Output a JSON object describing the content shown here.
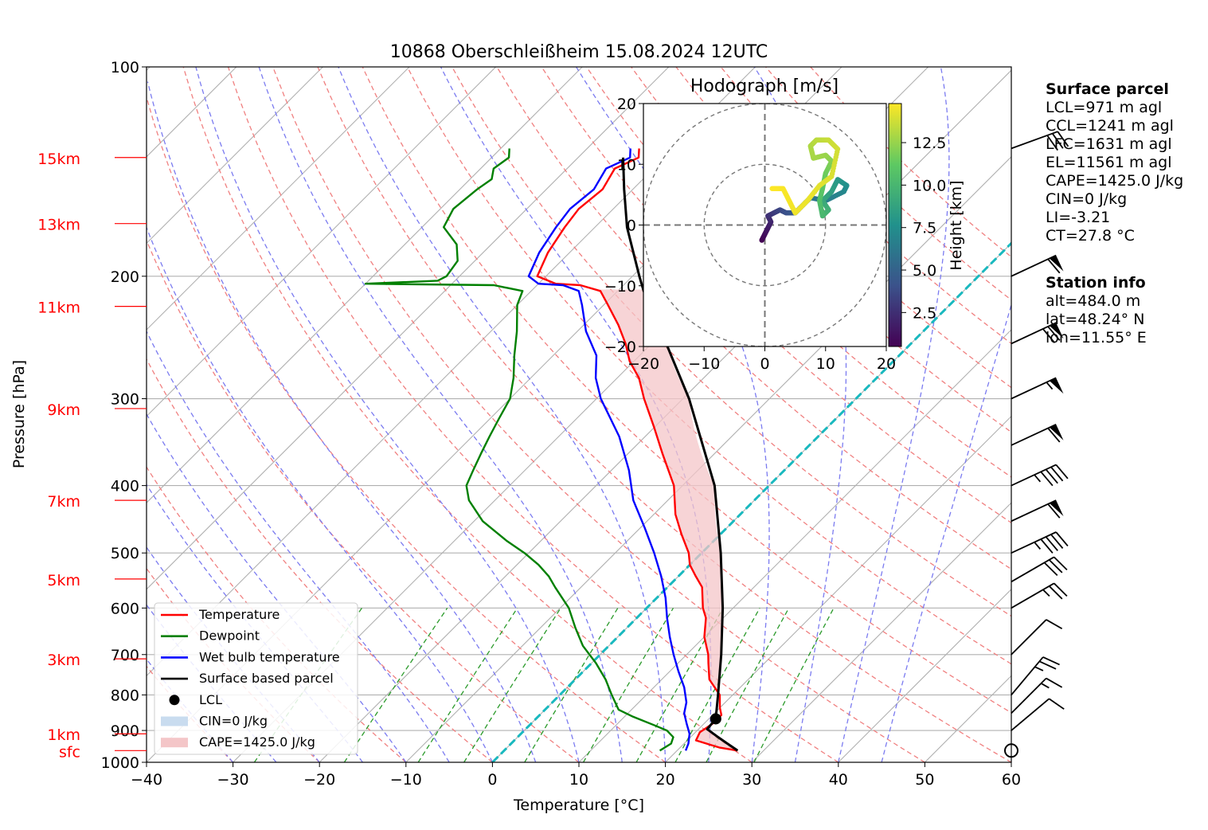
{
  "chart_data": [
    {
      "type": "line",
      "subtype": "skew-t log-p diagram",
      "title": "10868 Oberschleißheim 15.08.2024 12UTC",
      "xlabel": "Temperature [°C]",
      "ylabel": "Pressure [hPa]",
      "xlim": [
        -40,
        60
      ],
      "ylim": [
        1000,
        100
      ],
      "y_scale": "log",
      "grid": true,
      "x_ticks": [
        "−40",
        "−30",
        "−20",
        "−10",
        "0",
        "10",
        "20",
        "30",
        "40",
        "50",
        "60"
      ],
      "y_ticks": [
        "100",
        "200",
        "300",
        "400",
        "500",
        "600",
        "700",
        "800",
        "900",
        "1000"
      ],
      "height_labels": [
        {
          "label": "15km",
          "p": 135
        },
        {
          "label": "13km",
          "p": 168
        },
        {
          "label": "11km",
          "p": 221
        },
        {
          "label": "9km",
          "p": 310
        },
        {
          "label": "7km",
          "p": 420
        },
        {
          "label": "5km",
          "p": 545
        },
        {
          "label": "3km",
          "p": 710
        },
        {
          "label": "1km",
          "p": 910
        },
        {
          "label": "sfc",
          "p": 962
        }
      ],
      "legend": {
        "position": "lower-left",
        "entries": [
          {
            "label": "Temperature",
            "color": "#ff0000",
            "style": "line"
          },
          {
            "label": "Dewpoint",
            "color": "#008000",
            "style": "line"
          },
          {
            "label": "Wet bulb temperature",
            "color": "#0000ff",
            "style": "line"
          },
          {
            "label": "Surface based parcel",
            "color": "#000000",
            "style": "line"
          },
          {
            "label": "LCL",
            "color": "#000000",
            "style": "dot"
          },
          {
            "label": "CIN=0 J/kg",
            "color": "#c9dcef",
            "style": "patch"
          },
          {
            "label": "CAPE=1425.0 J/kg",
            "color": "#f4c6c8",
            "style": "patch"
          }
        ]
      },
      "series": [
        {
          "name": "Temperature",
          "color": "#ff0000",
          "points": [
            [
              962,
              27.0
            ],
            [
              952,
              24.5
            ],
            [
              930,
              21.0
            ],
            [
              905,
              20.5
            ],
            [
              880,
              21.0
            ],
            [
              855,
              21.0
            ],
            [
              835,
              20.0
            ],
            [
              800,
              18.5
            ],
            [
              760,
              15.5
            ],
            [
              720,
              13.5
            ],
            [
              700,
              12.5
            ],
            [
              660,
              10.0
            ],
            [
              620,
              8.0
            ],
            [
              600,
              6.5
            ],
            [
              560,
              4.0
            ],
            [
              540,
              2.0
            ],
            [
              520,
              0.0
            ],
            [
              500,
              -1.5
            ],
            [
              470,
              -4.5
            ],
            [
              440,
              -7.5
            ],
            [
              400,
              -11.0
            ],
            [
              360,
              -16.0
            ],
            [
              330,
              -20.0
            ],
            [
              300,
              -24.5
            ],
            [
              280,
              -27.5
            ],
            [
              265,
              -30.5
            ],
            [
              250,
              -33.0
            ],
            [
              235,
              -36.0
            ],
            [
              220,
              -39.5
            ],
            [
              210,
              -42.0
            ],
            [
              206,
              -45.0
            ],
            [
              205,
              -48.0
            ],
            [
              200,
              -51.0
            ],
            [
              185,
              -52.5
            ],
            [
              170,
              -53.5
            ],
            [
              160,
              -54.0
            ],
            [
              150,
              -53.5
            ],
            [
              140,
              -54.5
            ],
            [
              135,
              -53.0
            ],
            [
              131,
              -54.0
            ]
          ]
        },
        {
          "name": "Dewpoint",
          "color": "#008000",
          "points": [
            [
              962,
              18.0
            ],
            [
              940,
              18.5
            ],
            [
              920,
              18.0
            ],
            [
              900,
              16.5
            ],
            [
              885,
              14.5
            ],
            [
              860,
              11.0
            ],
            [
              840,
              8.5
            ],
            [
              800,
              6.0
            ],
            [
              760,
              3.5
            ],
            [
              720,
              0.5
            ],
            [
              680,
              -3.0
            ],
            [
              640,
              -6.0
            ],
            [
              600,
              -9.0
            ],
            [
              560,
              -13.0
            ],
            [
              540,
              -15.0
            ],
            [
              520,
              -17.5
            ],
            [
              500,
              -20.5
            ],
            [
              480,
              -24.0
            ],
            [
              450,
              -29.0
            ],
            [
              420,
              -33.0
            ],
            [
              400,
              -35.0
            ],
            [
              380,
              -36.0
            ],
            [
              360,
              -37.0
            ],
            [
              340,
              -38.0
            ],
            [
              320,
              -39.0
            ],
            [
              300,
              -40.0
            ],
            [
              280,
              -42.0
            ],
            [
              260,
              -44.5
            ],
            [
              240,
              -47.0
            ],
            [
              220,
              -50.0
            ],
            [
              210,
              -51.0
            ],
            [
              206,
              -55.0
            ],
            [
              205,
              -70.0
            ],
            [
              203,
              -62.0
            ],
            [
              200,
              -61.5
            ],
            [
              190,
              -62.0
            ],
            [
              180,
              -64.0
            ],
            [
              170,
              -67.5
            ],
            [
              160,
              -68.5
            ],
            [
              150,
              -68.0
            ],
            [
              145,
              -67.5
            ],
            [
              140,
              -68.5
            ],
            [
              135,
              -68.0
            ],
            [
              131,
              -69.0
            ]
          ]
        },
        {
          "name": "Wet bulb temperature",
          "color": "#0000ff",
          "points": [
            [
              962,
              21.0
            ],
            [
              940,
              20.5
            ],
            [
              910,
              19.5
            ],
            [
              880,
              18.0
            ],
            [
              850,
              16.5
            ],
            [
              820,
              15.5
            ],
            [
              780,
              13.5
            ],
            [
              740,
              11.0
            ],
            [
              700,
              8.5
            ],
            [
              660,
              6.0
            ],
            [
              620,
              3.5
            ],
            [
              580,
              1.0
            ],
            [
              540,
              -2.0
            ],
            [
              500,
              -5.5
            ],
            [
              460,
              -9.5
            ],
            [
              420,
              -14.0
            ],
            [
              380,
              -18.0
            ],
            [
              340,
              -23.0
            ],
            [
              300,
              -29.5
            ],
            [
              280,
              -32.5
            ],
            [
              260,
              -35.0
            ],
            [
              240,
              -39.0
            ],
            [
              220,
              -42.5
            ],
            [
              210,
              -44.5
            ],
            [
              206,
              -47.0
            ],
            [
              205,
              -50.0
            ],
            [
              200,
              -52.0
            ],
            [
              185,
              -53.5
            ],
            [
              170,
              -54.5
            ],
            [
              160,
              -55.0
            ],
            [
              150,
              -54.5
            ],
            [
              140,
              -55.5
            ],
            [
              135,
              -54.0
            ],
            [
              131,
              -55.0
            ]
          ]
        },
        {
          "name": "Surface based parcel",
          "color": "#000000",
          "points": [
            [
              962,
              27.0
            ],
            [
              940,
              25.0
            ],
            [
              918,
              23.0
            ],
            [
              896,
              21.0
            ],
            [
              866,
              20.8
            ],
            [
              800,
              18.3
            ],
            [
              700,
              14.0
            ],
            [
              600,
              8.8
            ],
            [
              500,
              2.2
            ],
            [
              400,
              -6.3
            ],
            [
              300,
              -19.3
            ],
            [
              250,
              -28.3
            ],
            [
              210,
              -37.0
            ],
            [
              200,
              -39.2
            ],
            [
              170,
              -46.3
            ],
            [
              150,
              -51.0
            ],
            [
              135,
              -54.8
            ]
          ]
        }
      ],
      "lcl": {
        "p": 866,
        "t": 20.8
      }
    },
    {
      "type": "scatter",
      "subtype": "hodograph",
      "title": "Hodograph [m/s]",
      "xlim": [
        -20,
        20
      ],
      "ylim": [
        -20,
        20
      ],
      "x_ticks": [
        "−20",
        "−10",
        "0",
        "10",
        "20"
      ],
      "y_ticks": [
        "−20",
        "−10",
        "0",
        "10",
        "20"
      ],
      "colorbar_label": "Height [km]",
      "colorbar_ticks": [
        "2.5",
        "5.0",
        "7.5",
        "10.0",
        "12.5"
      ],
      "colorbar_range": [
        0.5,
        14.8
      ],
      "points": [
        [
          -0.5,
          -2.5,
          0.5
        ],
        [
          0.0,
          -1.5,
          1.0
        ],
        [
          0.5,
          -0.5,
          1.5
        ],
        [
          1.0,
          0.5,
          2.0
        ],
        [
          0.5,
          1.5,
          2.5
        ],
        [
          1.5,
          2.0,
          3.0
        ],
        [
          2.5,
          2.5,
          3.5
        ],
        [
          3.5,
          2.0,
          4.0
        ],
        [
          5.0,
          2.0,
          4.5
        ],
        [
          6.0,
          3.0,
          5.5
        ],
        [
          7.5,
          4.5,
          6.0
        ],
        [
          10.0,
          4.0,
          6.5
        ],
        [
          13.0,
          5.5,
          7.0
        ],
        [
          13.5,
          6.5,
          7.5
        ],
        [
          12.0,
          7.5,
          8.0
        ],
        [
          11.0,
          5.5,
          8.5
        ],
        [
          9.5,
          4.0,
          9.0
        ],
        [
          10.5,
          2.5,
          9.5
        ],
        [
          9.5,
          1.5,
          10.0
        ],
        [
          9.0,
          4.0,
          10.5
        ],
        [
          9.5,
          6.0,
          11.0
        ],
        [
          10.0,
          8.5,
          11.5
        ],
        [
          11.0,
          10.5,
          12.0
        ],
        [
          10.0,
          11.5,
          12.5
        ],
        [
          8.0,
          11.0,
          12.8
        ],
        [
          7.5,
          13.0,
          13.0
        ],
        [
          8.5,
          14.0,
          13.3
        ],
        [
          10.5,
          14.0,
          13.6
        ],
        [
          12.0,
          12.5,
          13.8
        ],
        [
          11.0,
          8.0,
          14.0
        ],
        [
          9.0,
          6.5,
          14.2
        ],
        [
          7.0,
          4.0,
          14.4
        ],
        [
          5.0,
          2.0,
          14.5
        ],
        [
          4.0,
          4.0,
          14.6
        ],
        [
          3.0,
          6.0,
          14.7
        ],
        [
          1.0,
          6.0,
          14.8
        ]
      ]
    }
  ],
  "wind_barbs": [
    {
      "p": 131,
      "speed_kt": 30,
      "dir_deg": 250
    },
    {
      "p": 200,
      "speed_kt": 60,
      "dir_deg": 245
    },
    {
      "p": 250,
      "speed_kt": 70,
      "dir_deg": 245
    },
    {
      "p": 300,
      "speed_kt": 55,
      "dir_deg": 245
    },
    {
      "p": 350,
      "speed_kt": 60,
      "dir_deg": 245
    },
    {
      "p": 400,
      "speed_kt": 45,
      "dir_deg": 245
    },
    {
      "p": 450,
      "speed_kt": 60,
      "dir_deg": 245
    },
    {
      "p": 500,
      "speed_kt": 45,
      "dir_deg": 245
    },
    {
      "p": 550,
      "speed_kt": 30,
      "dir_deg": 240
    },
    {
      "p": 600,
      "speed_kt": 25,
      "dir_deg": 240
    },
    {
      "p": 700,
      "speed_kt": 10,
      "dir_deg": 225
    },
    {
      "p": 800,
      "speed_kt": 25,
      "dir_deg": 220
    },
    {
      "p": 850,
      "speed_kt": 15,
      "dir_deg": 225
    },
    {
      "p": 900,
      "speed_kt": 10,
      "dir_deg": 230
    },
    {
      "p": 962,
      "speed_kt": 0,
      "dir_deg": 0
    }
  ],
  "surface_parcel": {
    "heading": "Surface parcel",
    "lines": [
      "LCL=971 m agl",
      "CCL=1241 m agl",
      "LFC=1631 m agl",
      "EL=11561 m agl",
      "CAPE=1425.0 J/kg",
      "CIN=0 J/kg",
      "LI=-3.21",
      "CT=27.8 °C"
    ]
  },
  "station_info": {
    "heading": "Station info",
    "lines": [
      "alt=484.0 m",
      "lat=48.24° N",
      "lon=11.55° E"
    ]
  },
  "colors": {
    "temperature": "#ff0000",
    "dewpoint": "#008000",
    "wetbulb": "#0000ff",
    "parcel": "#000000",
    "cape_fill": "#f4c6c8",
    "cin_fill": "#c9dcef",
    "dry_adiabat": "#f08080",
    "moist_adiabat": "#7b7bf0",
    "mixing_ratio": "#2a9a2a",
    "isotherm_0": "#1ab9bf",
    "height_label": "#ff0000"
  }
}
